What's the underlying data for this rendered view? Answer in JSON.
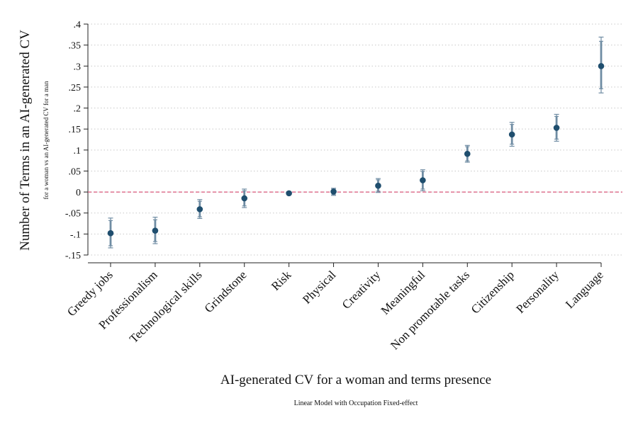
{
  "chart_data": {
    "type": "scatter",
    "subtype": "coefficient-plot-with-confidence-intervals",
    "categories": [
      "Greedy jobs",
      "Professionalism",
      "Technological skills",
      "Grindstone",
      "Risk",
      "Physical",
      "Creativity",
      "Meaningful",
      "Non promotable tasks",
      "Citizenship",
      "Personality",
      "Language"
    ],
    "series": [
      {
        "values": [
          -0.098,
          -0.092,
          -0.041,
          -0.015,
          -0.003,
          0.001,
          0.015,
          0.028,
          0.091,
          0.137,
          0.153,
          0.3
        ],
        "ci95_low": [
          -0.133,
          -0.123,
          -0.063,
          -0.037,
          -0.006,
          -0.008,
          -0.001,
          0.003,
          0.071,
          0.109,
          0.121,
          0.236
        ],
        "ci95_high": [
          -0.062,
          -0.06,
          -0.018,
          0.007,
          0.001,
          0.009,
          0.032,
          0.053,
          0.111,
          0.166,
          0.185,
          0.369
        ],
        "ci90_low": [
          -0.128,
          -0.118,
          -0.059,
          -0.033,
          -0.005,
          -0.006,
          0.002,
          0.007,
          0.074,
          0.114,
          0.126,
          0.246
        ],
        "ci90_high": [
          -0.068,
          -0.066,
          -0.022,
          0.003,
          0.0,
          0.007,
          0.029,
          0.049,
          0.108,
          0.161,
          0.18,
          0.359
        ]
      }
    ],
    "yticks": [
      ".4",
      ".35",
      ".3",
      ".25",
      ".2",
      ".15",
      ".1",
      ".05",
      "0",
      "-.05",
      "-.1",
      "-.15"
    ],
    "ytick_values": [
      0.4,
      0.35,
      0.3,
      0.25,
      0.2,
      0.15,
      0.1,
      0.05,
      0,
      -0.05,
      -0.1,
      -0.15
    ],
    "ylim": [
      -0.15,
      0.4
    ],
    "reference_line": 0,
    "grid": "horizontal-dotted",
    "xlabel": "AI-generated CV for a woman and terms presence",
    "ylabel": "Number of Terms in an AI-generated CV",
    "ylabel_sub": "for a woman vs an AI-generated CV for a man",
    "note": "Linear Model with Occupation Fixed-effect",
    "colors": {
      "point": "#1f4e6e",
      "ci": "#6f8ca3",
      "reference": "#d9577a",
      "grid": "#c8c8c8",
      "axis": "#222222"
    }
  }
}
